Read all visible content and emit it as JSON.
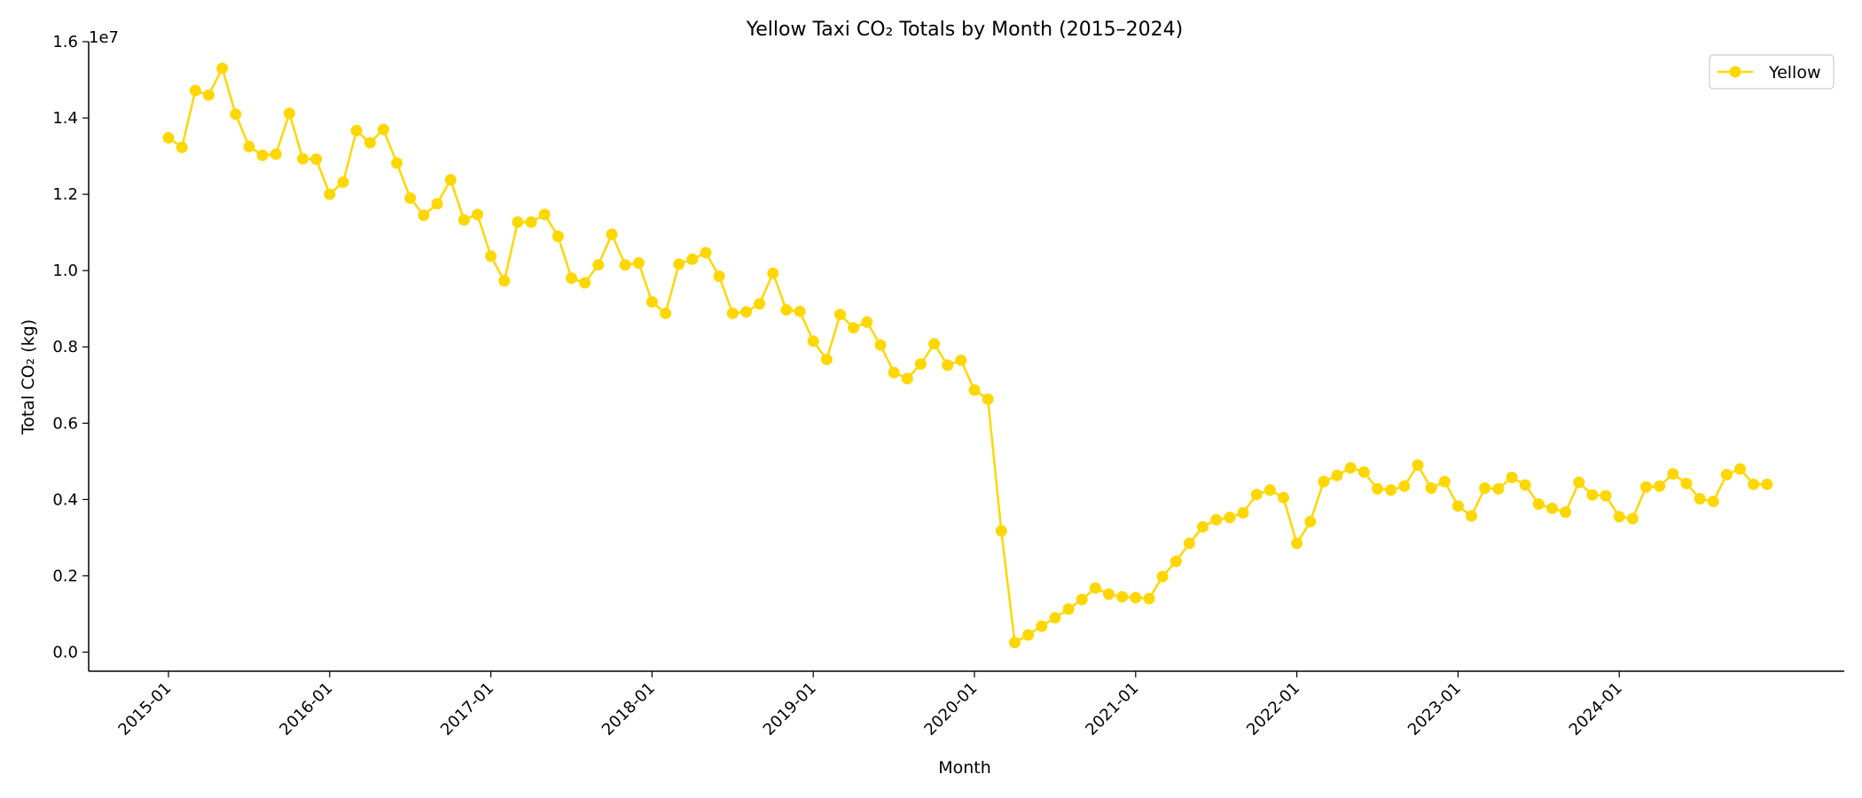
{
  "chart_data": {
    "type": "line",
    "title": "Yellow Taxi CO₂ Totals by Month (2015–2024)",
    "xlabel": "Month",
    "ylabel": "Total CO₂ (kg)",
    "y_scale_label": "1e7",
    "y_scale": 10000000,
    "ylim": [
      -0.05,
      1.6
    ],
    "yticks": [
      0.0,
      0.2,
      0.4,
      0.6,
      0.8,
      1.0,
      1.2,
      1.4,
      1.6
    ],
    "ytick_labels": [
      "0.0",
      "0.2",
      "0.4",
      "0.6",
      "0.8",
      "1.0",
      "1.2",
      "1.4",
      "1.6"
    ],
    "x_start": "2015-01",
    "xticks": [
      "2015-01",
      "2016-01",
      "2017-01",
      "2018-01",
      "2019-01",
      "2020-01",
      "2021-01",
      "2022-01",
      "2023-01",
      "2024-01"
    ],
    "grid": false,
    "legend_position": "top-right",
    "series": [
      {
        "name": "Yellow",
        "color": "#FFD700",
        "marker": "circle",
        "x": [
          "2015-01",
          "2015-02",
          "2015-03",
          "2015-04",
          "2015-05",
          "2015-06",
          "2015-07",
          "2015-08",
          "2015-09",
          "2015-10",
          "2015-11",
          "2015-12",
          "2016-01",
          "2016-02",
          "2016-03",
          "2016-04",
          "2016-05",
          "2016-06",
          "2016-07",
          "2016-08",
          "2016-09",
          "2016-10",
          "2016-11",
          "2016-12",
          "2017-01",
          "2017-02",
          "2017-03",
          "2017-04",
          "2017-05",
          "2017-06",
          "2017-07",
          "2017-08",
          "2017-09",
          "2017-10",
          "2017-11",
          "2017-12",
          "2018-01",
          "2018-02",
          "2018-03",
          "2018-04",
          "2018-05",
          "2018-06",
          "2018-07",
          "2018-08",
          "2018-09",
          "2018-10",
          "2018-11",
          "2018-12",
          "2019-01",
          "2019-02",
          "2019-03",
          "2019-04",
          "2019-05",
          "2019-06",
          "2019-07",
          "2019-08",
          "2019-09",
          "2019-10",
          "2019-11",
          "2019-12",
          "2020-01",
          "2020-02",
          "2020-03",
          "2020-04",
          "2020-05",
          "2020-06",
          "2020-07",
          "2020-08",
          "2020-09",
          "2020-10",
          "2020-11",
          "2020-12",
          "2021-01",
          "2021-02",
          "2021-03",
          "2021-04",
          "2021-05",
          "2021-06",
          "2021-07",
          "2021-08",
          "2021-09",
          "2021-10",
          "2021-11",
          "2021-12",
          "2022-01",
          "2022-02",
          "2022-03",
          "2022-04",
          "2022-05",
          "2022-06",
          "2022-07",
          "2022-08",
          "2022-09",
          "2022-10",
          "2022-11",
          "2022-12",
          "2023-01",
          "2023-02",
          "2023-03",
          "2023-04",
          "2023-05",
          "2023-06",
          "2023-07",
          "2023-08",
          "2023-09",
          "2023-10",
          "2023-11",
          "2023-12",
          "2024-01",
          "2024-02",
          "2024-03",
          "2024-04",
          "2024-05",
          "2024-06",
          "2024-07",
          "2024-08",
          "2024-09",
          "2024-10",
          "2024-11",
          "2024-12"
        ],
        "values": [
          1.348,
          1.323,
          1.472,
          1.46,
          1.53,
          1.41,
          1.325,
          1.302,
          1.305,
          1.412,
          1.293,
          1.292,
          1.2,
          1.232,
          1.367,
          1.335,
          1.37,
          1.282,
          1.19,
          1.145,
          1.175,
          1.238,
          1.133,
          1.147,
          1.038,
          0.973,
          1.127,
          1.127,
          1.147,
          1.09,
          0.98,
          0.968,
          1.015,
          1.095,
          1.015,
          1.02,
          0.918,
          0.888,
          1.017,
          1.03,
          1.047,
          0.985,
          0.888,
          0.892,
          0.913,
          0.993,
          0.897,
          0.893,
          0.815,
          0.767,
          0.885,
          0.85,
          0.865,
          0.805,
          0.733,
          0.717,
          0.755,
          0.808,
          0.752,
          0.765,
          0.687,
          0.663,
          0.318,
          0.025,
          0.045,
          0.068,
          0.09,
          0.113,
          0.138,
          0.168,
          0.152,
          0.145,
          0.143,
          0.14,
          0.198,
          0.238,
          0.285,
          0.328,
          0.347,
          0.353,
          0.365,
          0.413,
          0.425,
          0.405,
          0.285,
          0.342,
          0.447,
          0.463,
          0.483,
          0.472,
          0.428,
          0.425,
          0.435,
          0.49,
          0.43,
          0.447,
          0.383,
          0.357,
          0.43,
          0.428,
          0.458,
          0.438,
          0.388,
          0.377,
          0.367,
          0.445,
          0.412,
          0.41,
          0.355,
          0.35,
          0.433,
          0.435,
          0.467,
          0.442,
          0.402,
          0.395,
          0.465,
          0.48,
          0.44,
          0.44
        ]
      }
    ]
  }
}
